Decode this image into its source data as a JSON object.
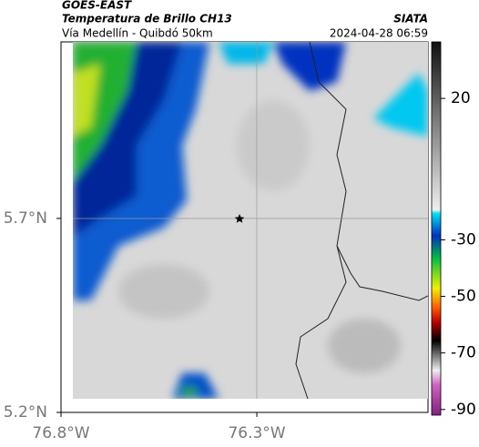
{
  "header": {
    "satellite": "GOES-EAST",
    "product": "Temperatura de Brillo CH13",
    "route": "Vía Medellín - Quibdó 50km",
    "source": "SIATA",
    "datetime": "2024-04-28 06:59"
  },
  "map": {
    "xlim": [
      -76.8,
      -75.863
    ],
    "ylim": [
      5.2,
      6.155
    ],
    "xticks": [
      {
        "value": -76.8,
        "label": "76.8°W"
      },
      {
        "value": -76.3,
        "label": "76.3°W"
      }
    ],
    "yticks": [
      {
        "value": 5.7,
        "label": "5.7°N"
      },
      {
        "value": 5.2,
        "label": "5.2°N"
      }
    ]
  },
  "colorbar": {
    "lim": [
      -92,
      40
    ],
    "ticks": [
      20,
      -30,
      -50,
      -70,
      -90
    ]
  }
}
